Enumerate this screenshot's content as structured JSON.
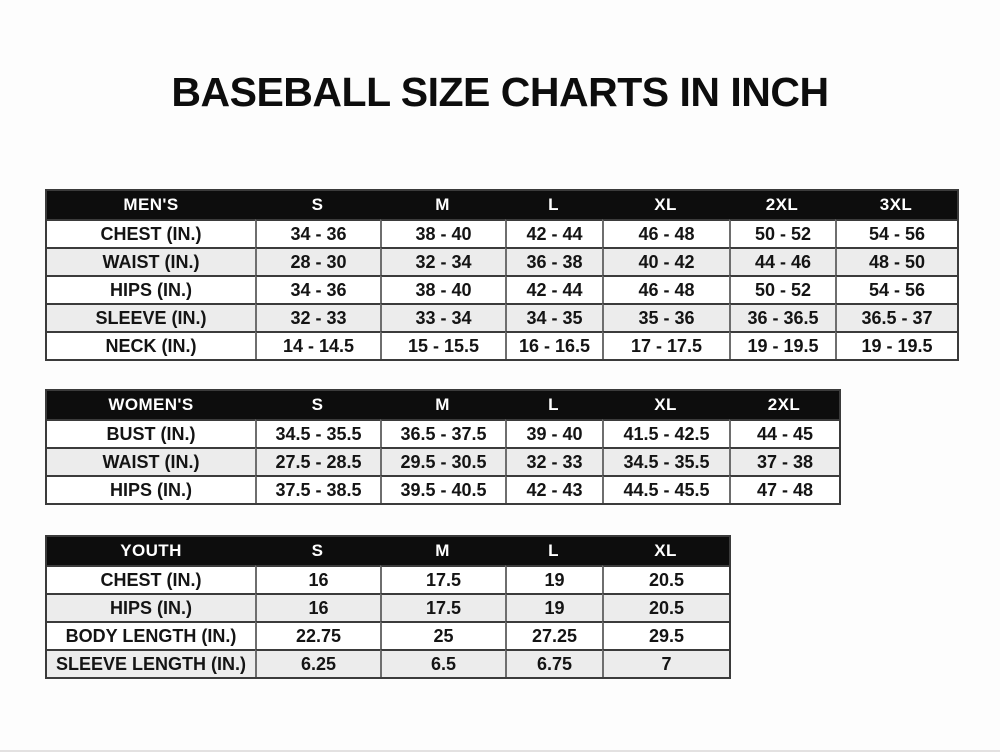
{
  "page": {
    "title": "BASEBALL SIZE CHARTS IN INCH"
  },
  "chart_data": [
    {
      "type": "table",
      "name": "mens",
      "title": "MEN'S",
      "columns": [
        "MEN'S",
        "S",
        "M",
        "L",
        "XL",
        "2XL",
        "3XL"
      ],
      "rows": [
        [
          "CHEST (IN.)",
          "34 - 36",
          "38 - 40",
          "42 - 44",
          "46 - 48",
          "50 - 52",
          "54 - 56"
        ],
        [
          "WAIST (IN.)",
          "28 - 30",
          "32 - 34",
          "36 - 38",
          "40 - 42",
          "44 - 46",
          "48 - 50"
        ],
        [
          "HIPS (IN.)",
          "34 - 36",
          "38 - 40",
          "42 - 44",
          "46 - 48",
          "50 - 52",
          "54 - 56"
        ],
        [
          "SLEEVE (IN.)",
          "32 - 33",
          "33 - 34",
          "34 - 35",
          "35 - 36",
          "36 - 36.5",
          "36.5 - 37"
        ],
        [
          "NECK (IN.)",
          "14 - 14.5",
          "15 - 15.5",
          "16 - 16.5",
          "17 - 17.5",
          "19 - 19.5",
          "19 - 19.5"
        ]
      ]
    },
    {
      "type": "table",
      "name": "womens",
      "title": "WOMEN'S",
      "columns": [
        "WOMEN'S",
        "S",
        "M",
        "L",
        "XL",
        "2XL"
      ],
      "rows": [
        [
          "BUST (IN.)",
          "34.5 - 35.5",
          "36.5 - 37.5",
          "39 - 40",
          "41.5 - 42.5",
          "44 - 45"
        ],
        [
          "WAIST (IN.)",
          "27.5 - 28.5",
          "29.5 - 30.5",
          "32 - 33",
          "34.5 - 35.5",
          "37 - 38"
        ],
        [
          "HIPS (IN.)",
          "37.5 - 38.5",
          "39.5 - 40.5",
          "42 - 43",
          "44.5 - 45.5",
          "47 - 48"
        ]
      ]
    },
    {
      "type": "table",
      "name": "youth",
      "title": "YOUTH",
      "columns": [
        "YOUTH",
        "S",
        "M",
        "L",
        "XL"
      ],
      "rows": [
        [
          "CHEST (IN.)",
          "16",
          "17.5",
          "19",
          "20.5"
        ],
        [
          "HIPS (IN.)",
          "16",
          "17.5",
          "19",
          "20.5"
        ],
        [
          "BODY LENGTH (IN.)",
          "22.75",
          "25",
          "27.25",
          "29.5"
        ],
        [
          "SLEEVE LENGTH (IN.)",
          "6.25",
          "6.5",
          "6.75",
          "7"
        ]
      ]
    }
  ],
  "colors": {
    "header_bg": "#0d0d0d",
    "header_text": "#ffffff",
    "text": "#141414",
    "row_alt_bg": "#ececec",
    "border_dark": "#3b3b3b",
    "border_light": "#6e6e6e"
  }
}
